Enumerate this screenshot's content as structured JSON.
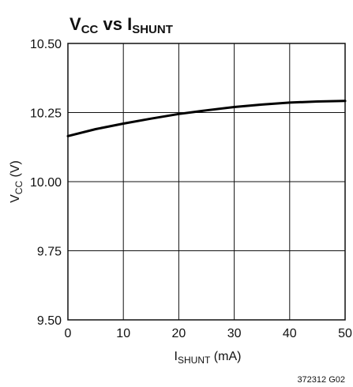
{
  "chart_data": {
    "type": "line",
    "title": {
      "main": "V",
      "main_sub": "CC",
      "joiner": " vs ",
      "second": "I",
      "second_sub": "SHUNT"
    },
    "xlabel": {
      "main": "I",
      "sub": "SHUNT",
      "rest": " (mA)"
    },
    "ylabel": {
      "main": "V",
      "sub": "CC",
      "rest": " (V)"
    },
    "xlim": [
      0,
      50
    ],
    "ylim": [
      9.5,
      10.5
    ],
    "x_ticks": [
      0,
      10,
      20,
      30,
      40,
      50
    ],
    "x_tick_labels": [
      "0",
      "10",
      "20",
      "30",
      "40",
      "50"
    ],
    "y_ticks": [
      9.5,
      9.75,
      10.0,
      10.25,
      10.5
    ],
    "y_tick_labels": [
      "9.50",
      "9.75",
      "10.00",
      "10.25",
      "10.50"
    ],
    "grid": true,
    "series": [
      {
        "x": [
          0,
          5,
          10,
          15,
          20,
          25,
          30,
          35,
          40,
          45,
          50
        ],
        "y": [
          10.165,
          10.19,
          10.21,
          10.228,
          10.245,
          10.258,
          10.27,
          10.279,
          10.286,
          10.29,
          10.292
        ]
      }
    ],
    "figure_code": "372312 G02",
    "colors": {
      "line": "#000000",
      "grid": "#111111"
    }
  }
}
